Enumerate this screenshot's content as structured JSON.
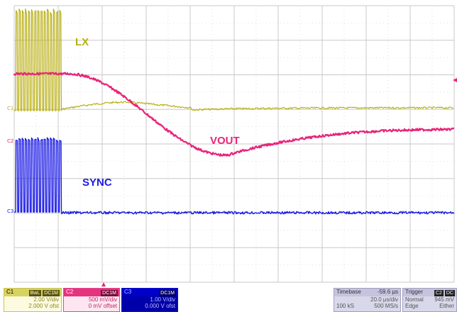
{
  "colors": {
    "c1": "#b8ae10",
    "c2": "#e8247a",
    "c3": "#1a1ae6",
    "grid": "#c8c8c8",
    "background": "#ffffff"
  },
  "traces": {
    "lx_label": "LX",
    "vout_label": "VOUT",
    "sync_label": "SYNC"
  },
  "channel_markers": {
    "c1": "C1",
    "c2": "C2",
    "c3": "C3"
  },
  "ch1": {
    "name": "C1",
    "tag1": "BwL",
    "tag2": "DC1M",
    "scale": "2.00 V/div",
    "offset": "2.000 V ofst"
  },
  "ch2": {
    "name": "C2",
    "tag": "DC1M",
    "scale": "500 mV/div",
    "offset": "0 mV offset"
  },
  "ch3": {
    "name": "C3",
    "tag": "DC1M",
    "scale": "1.00 V/div",
    "offset": "0.000 V ofst"
  },
  "timebase": {
    "label": "Timebase",
    "position": "-59.6 µs",
    "scale": "20.0 µs/div",
    "samples": "100 kS",
    "rate": "500 MS/s"
  },
  "trigger": {
    "label": "Trigger",
    "tag1": "C2",
    "tag2": "DC",
    "mode": "Normal",
    "level": "945 mV",
    "type": "Edge",
    "slope": "Either"
  }
}
